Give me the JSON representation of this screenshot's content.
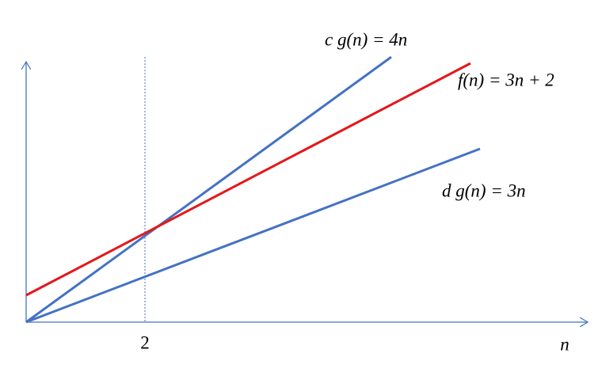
{
  "labels": {
    "cg": "c g(n) = 4n",
    "f": "f(n) = 3n + 2",
    "dg": "d g(n) = 3n",
    "x_mark": "2",
    "x_axis": "n"
  }
}
